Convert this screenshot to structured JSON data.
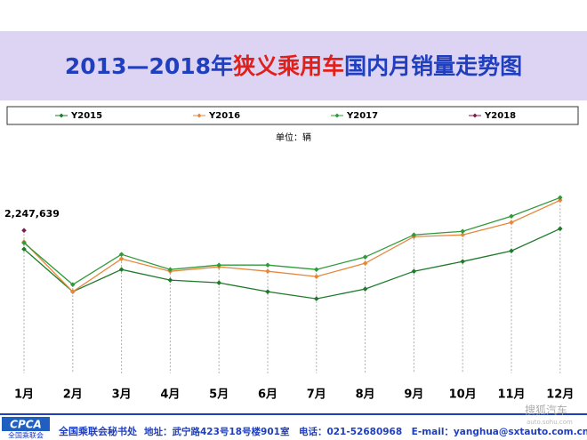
{
  "chart_data": {
    "type": "line",
    "title_parts": [
      "2013—2018年",
      "狭义乘用车",
      "国内月销量走势图"
    ],
    "title_colors": [
      "#1f3fbf",
      "#e0201a",
      "#1f3fbf"
    ],
    "unit": "单位：辆",
    "categories": [
      "1月",
      "2月",
      "3月",
      "4月",
      "5月",
      "6月",
      "7月",
      "8月",
      "9月",
      "10月",
      "11月",
      "12月"
    ],
    "series": [
      {
        "name": "Y2015",
        "color": "#1e7a2a",
        "values": [
          1954000,
          1284000,
          1633000,
          1466000,
          1424000,
          1284000,
          1173000,
          1326000,
          1605000,
          1759000,
          1926000,
          2275000
        ]
      },
      {
        "name": "Y2016",
        "color": "#e8863a",
        "values": [
          2066000,
          1284000,
          1801000,
          1605000,
          1675000,
          1605000,
          1522000,
          1731000,
          2150000,
          2178000,
          2373000,
          2722000
        ]
      },
      {
        "name": "Y2017",
        "color": "#2f9a3a",
        "values": [
          2052000,
          1396000,
          1871000,
          1633000,
          1703000,
          1703000,
          1633000,
          1829000,
          2178000,
          2234000,
          2471000,
          2764000
        ]
      },
      {
        "name": "Y2018",
        "color": "#7a1f4c",
        "values": [
          2247639,
          null,
          null,
          null,
          null,
          null,
          null,
          null,
          null,
          null,
          null,
          null
        ],
        "value_labels": [
          "2,247,639",
          null,
          null,
          null,
          null,
          null,
          null,
          null,
          null,
          null,
          null,
          null
        ]
      }
    ],
    "ylim": [
      0,
      2950000
    ],
    "footer": {
      "logo": "CPCA",
      "logo_sub": "全国乘联会",
      "org": "全国乘联会秘书处",
      "contact": "地址：武宁路423号18号楼901室　电话：021-52680968　E-mail：yanghua@sxtauto.com.cn",
      "watermark": "搜狐汽车",
      "watermark_url": "auto.sohu.com"
    }
  }
}
